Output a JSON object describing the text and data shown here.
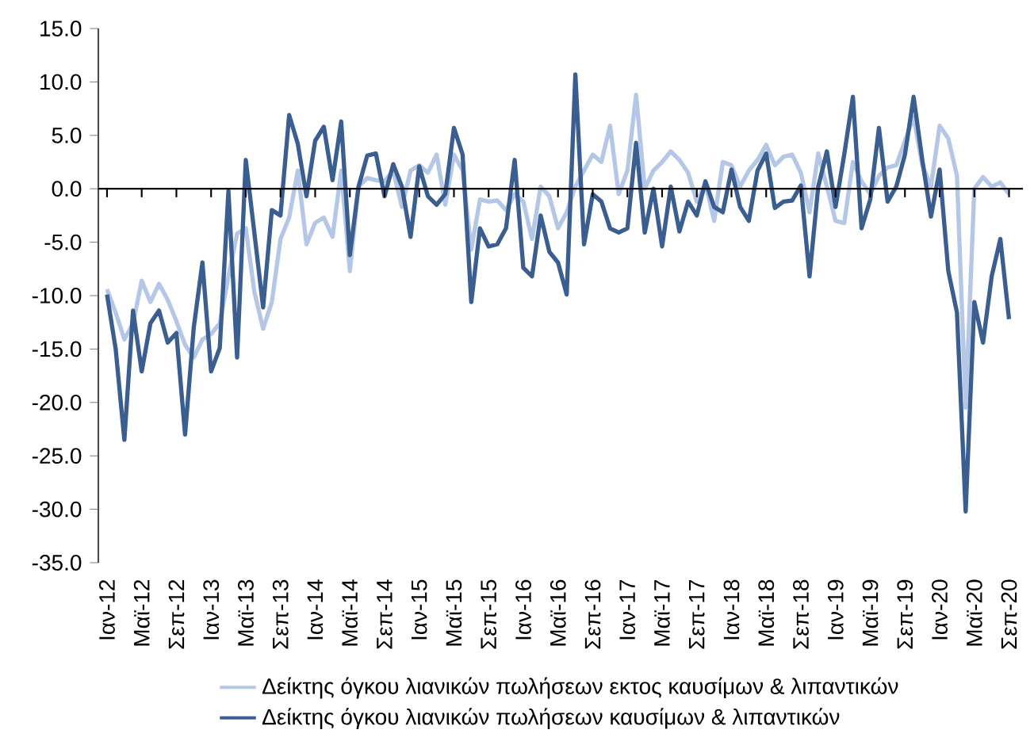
{
  "chart_data": {
    "type": "line",
    "categories": [
      "Ιαν-12",
      null,
      null,
      null,
      "Μαϊ-12",
      null,
      null,
      null,
      "Σεπ-12",
      null,
      null,
      null,
      "Ιαν-13",
      null,
      null,
      null,
      "Μαϊ-13",
      null,
      null,
      null,
      "Σεπ-13",
      null,
      null,
      null,
      "Ιαν-14",
      null,
      null,
      null,
      "Μαϊ-14",
      null,
      null,
      null,
      "Σεπ-14",
      null,
      null,
      null,
      "Ιαν-15",
      null,
      null,
      null,
      "Μαϊ-15",
      null,
      null,
      null,
      "Σεπ-15",
      null,
      null,
      null,
      "Ιαν-16",
      null,
      null,
      null,
      "Μαϊ-16",
      null,
      null,
      null,
      "Σεπ-16",
      null,
      null,
      null,
      "Ιαν-17",
      null,
      null,
      null,
      "Μαϊ-17",
      null,
      null,
      null,
      "Σεπ-17",
      null,
      null,
      null,
      "Ιαν-18",
      null,
      null,
      null,
      "Μαϊ-18",
      null,
      null,
      null,
      "Σεπ-18",
      null,
      null,
      null,
      "Ιαν-19",
      null,
      null,
      null,
      "Μαϊ-19",
      null,
      null,
      null,
      "Σεπ-19",
      null,
      null,
      null,
      "Ιαν-20",
      null,
      null,
      null,
      "Μαϊ-20",
      null,
      null,
      null,
      "Σεπ-20"
    ],
    "series": [
      {
        "name": "Δείκτης όγκου λιανικών πωλήσεων εκτος καυσίμων & λιπαντικών",
        "color": "#b4c7e7",
        "values": [
          -9.4,
          -11.6,
          -14.1,
          -12.6,
          -8.6,
          -10.6,
          -8.9,
          -10.4,
          -12.4,
          -14.6,
          -15.8,
          -14.1,
          -13.6,
          -12.6,
          -8.2,
          -4.2,
          -3.7,
          -9.7,
          -13.1,
          -10.6,
          -4.7,
          -2.7,
          1.7,
          -5.2,
          -3.2,
          -2.7,
          -4.5,
          1.7,
          -7.7,
          0.2,
          1,
          0.8,
          0.7,
          1.7,
          -1.7,
          1.7,
          2.2,
          1.5,
          3.2,
          -1.5,
          3.2,
          1.7,
          -5.7,
          -1,
          -1.2,
          -1.1,
          -2,
          -0.5,
          -1.2,
          -4.7,
          0.2,
          -0.7,
          -3.7,
          -2.2,
          0.2,
          1.7,
          3.2,
          2.5,
          5.9,
          -0.5,
          1.7,
          8.8,
          0,
          1.7,
          2.5,
          3.5,
          2.7,
          1.5,
          -1.2,
          0.5,
          -3,
          2.5,
          2.2,
          0.2,
          1.7,
          2.7,
          4.1,
          2.2,
          3,
          3.2,
          1.5,
          -2.2,
          3.3,
          0.2,
          -3,
          -3.2,
          2.5,
          0.7,
          -0.5,
          1.2,
          2,
          2.2,
          4.5,
          6.7,
          2.2,
          0.2,
          5.9,
          4.7,
          1.2,
          -20.5,
          0,
          1.1,
          0.2,
          0.6,
          -0.5
        ]
      },
      {
        "name": "Δείκτης όγκου λιανικών πωλήσεων καυσίμων & λιπαντικών",
        "color": "#3b5e91",
        "values": [
          -9.9,
          -15,
          -23.5,
          -11.4,
          -17.1,
          -12.6,
          -11.4,
          -14.4,
          -13.5,
          -23,
          -13,
          -6.9,
          -17.1,
          -14.9,
          -0.2,
          -15.8,
          2.7,
          -4.2,
          -11.1,
          -2,
          -2.5,
          6.9,
          4.2,
          -0.7,
          4.5,
          5.8,
          0.8,
          6.3,
          -6.2,
          0.2,
          3.1,
          3.3,
          -0.7,
          2.3,
          0.2,
          -4.5,
          2.1,
          -0.7,
          -1.5,
          -0.5,
          5.7,
          3.2,
          -10.6,
          -3.7,
          -5.4,
          -5.2,
          -3.7,
          2.7,
          -7.4,
          -8.2,
          -2.5,
          -5.9,
          -6.9,
          -9.9,
          10.7,
          -5.2,
          -0.5,
          -1.2,
          -3.7,
          -4.1,
          -3.7,
          4.3,
          -4.1,
          0,
          -5.4,
          0.2,
          -4,
          -1.2,
          -2.5,
          0.7,
          -1.7,
          -2.2,
          1.8,
          -1.7,
          -3,
          1.7,
          3.3,
          -1.8,
          -1.2,
          -1.1,
          0.3,
          -8.2,
          0.2,
          3.5,
          -1.7,
          3.2,
          8.6,
          -3.7,
          -1,
          5.7,
          -1.2,
          0.2,
          3.2,
          8.6,
          2.7,
          -2.6,
          1.8,
          -7.7,
          -11.6,
          -30.2,
          -10.6,
          -14.4,
          -8.2,
          -4.7,
          -12.2
        ]
      }
    ],
    "ylim": [
      -35,
      15
    ],
    "yticks": [
      {
        "value": -35,
        "label": "-35.0"
      },
      {
        "value": -30,
        "label": "-30.0"
      },
      {
        "value": -25,
        "label": "-25.0"
      },
      {
        "value": -20,
        "label": "-20.0"
      },
      {
        "value": -15,
        "label": "-15.0"
      },
      {
        "value": -10,
        "label": "-10.0"
      },
      {
        "value": -5,
        "label": "-5.0"
      },
      {
        "value": 0,
        "label": "0.0"
      },
      {
        "value": 5,
        "label": "5.0"
      },
      {
        "value": 10,
        "label": "10.0"
      },
      {
        "value": 15,
        "label": "15.0"
      }
    ],
    "legend": "bottom",
    "marker": "none",
    "line_style": "solid"
  }
}
